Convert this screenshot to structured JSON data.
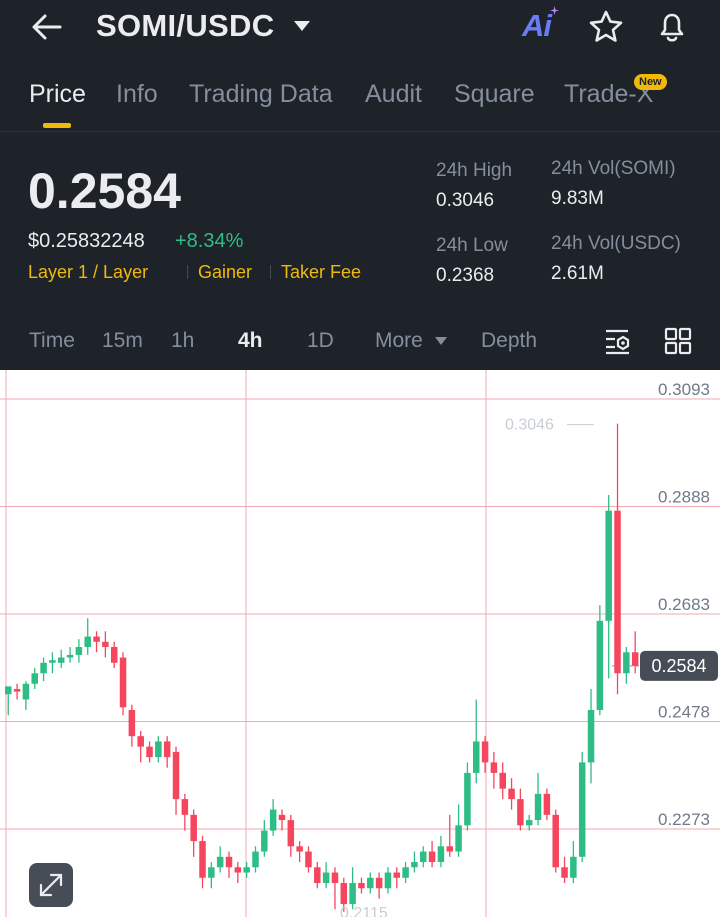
{
  "header": {
    "pair": "SOMI/USDC",
    "ai_label": "Ai",
    "icons": [
      "back-arrow-icon",
      "chevron-down-icon",
      "ai-icon",
      "star-icon",
      "bell-icon"
    ]
  },
  "tabs": [
    {
      "label": "Price",
      "active": true
    },
    {
      "label": "Info"
    },
    {
      "label": "Trading Data"
    },
    {
      "label": "Audit"
    },
    {
      "label": "Square"
    },
    {
      "label": "Trade-X",
      "badge": "New"
    }
  ],
  "ticker": {
    "last_price": "0.2584",
    "usd_price": "$0.25832248",
    "change": "+8.34%",
    "tags": [
      "Layer 1 / Layer",
      "Gainer",
      "Taker Fee"
    ],
    "stats": {
      "high_label": "24h High",
      "high_value": "0.3046",
      "low_label": "24h Low",
      "low_value": "0.2368",
      "vol_base_label": "24h Vol(SOMI)",
      "vol_base_value": "9.83M",
      "vol_quote_label": "24h Vol(USDC)",
      "vol_quote_value": "2.61M"
    }
  },
  "intervals": {
    "items": [
      "Time",
      "15m",
      "1h",
      "4h",
      "1D",
      "More",
      "Depth"
    ],
    "active": "4h"
  },
  "chart_data": {
    "type": "candlestick",
    "y_ticks": [
      "0.3093",
      "0.2888",
      "0.2683",
      "0.2478",
      "0.2273"
    ],
    "ylim": [
      0.2115,
      0.3093
    ],
    "high_marker": "0.3046",
    "low_marker": "0.2115",
    "last_price_label": "0.2584",
    "colors": {
      "up": "#2ebd85",
      "down": "#f6465d",
      "grid": "#f0a9b1"
    },
    "candles": [
      [
        0.253,
        0.2545,
        0.249,
        0.254
      ],
      [
        0.254,
        0.2535,
        0.252,
        0.255
      ],
      [
        0.252,
        0.255,
        0.25,
        0.2555
      ],
      [
        0.255,
        0.257,
        0.254,
        0.258
      ],
      [
        0.257,
        0.259,
        0.2555,
        0.26
      ],
      [
        0.259,
        0.2595,
        0.257,
        0.261
      ],
      [
        0.259,
        0.26,
        0.258,
        0.2615
      ],
      [
        0.26,
        0.2605,
        0.259,
        0.262
      ],
      [
        0.2605,
        0.262,
        0.259,
        0.2635
      ],
      [
        0.262,
        0.264,
        0.2605,
        0.2675
      ],
      [
        0.264,
        0.263,
        0.261,
        0.265
      ],
      [
        0.263,
        0.262,
        0.26,
        0.265
      ],
      [
        0.262,
        0.259,
        0.258,
        0.263
      ],
      [
        0.26,
        0.2505,
        0.249,
        0.261
      ],
      [
        0.25,
        0.245,
        0.243,
        0.251
      ],
      [
        0.245,
        0.243,
        0.24,
        0.246
      ],
      [
        0.243,
        0.241,
        0.24,
        0.244
      ],
      [
        0.241,
        0.244,
        0.24,
        0.245
      ],
      [
        0.244,
        0.241,
        0.239,
        0.245
      ],
      [
        0.242,
        0.233,
        0.23,
        0.243
      ],
      [
        0.233,
        0.23,
        0.227,
        0.234
      ],
      [
        0.23,
        0.225,
        0.222,
        0.231
      ],
      [
        0.225,
        0.218,
        0.216,
        0.226
      ],
      [
        0.218,
        0.22,
        0.216,
        0.221
      ],
      [
        0.22,
        0.222,
        0.219,
        0.224
      ],
      [
        0.222,
        0.22,
        0.218,
        0.223
      ],
      [
        0.22,
        0.219,
        0.217,
        0.221
      ],
      [
        0.219,
        0.22,
        0.218,
        0.221
      ],
      [
        0.22,
        0.223,
        0.219,
        0.224
      ],
      [
        0.223,
        0.227,
        0.222,
        0.229
      ],
      [
        0.227,
        0.231,
        0.226,
        0.233
      ],
      [
        0.23,
        0.229,
        0.227,
        0.231
      ],
      [
        0.229,
        0.224,
        0.222,
        0.23
      ],
      [
        0.224,
        0.223,
        0.221,
        0.225
      ],
      [
        0.223,
        0.22,
        0.219,
        0.224
      ],
      [
        0.22,
        0.217,
        0.216,
        0.221
      ],
      [
        0.217,
        0.219,
        0.216,
        0.221
      ],
      [
        0.219,
        0.217,
        0.212,
        0.22
      ],
      [
        0.217,
        0.213,
        0.2115,
        0.218
      ],
      [
        0.213,
        0.217,
        0.212,
        0.22
      ],
      [
        0.217,
        0.216,
        0.215,
        0.218
      ],
      [
        0.216,
        0.218,
        0.215,
        0.219
      ],
      [
        0.218,
        0.216,
        0.214,
        0.219
      ],
      [
        0.216,
        0.219,
        0.215,
        0.22
      ],
      [
        0.219,
        0.218,
        0.216,
        0.22
      ],
      [
        0.218,
        0.22,
        0.217,
        0.221
      ],
      [
        0.22,
        0.221,
        0.219,
        0.223
      ],
      [
        0.221,
        0.223,
        0.22,
        0.224
      ],
      [
        0.223,
        0.221,
        0.22,
        0.225
      ],
      [
        0.221,
        0.224,
        0.22,
        0.226
      ],
      [
        0.224,
        0.223,
        0.222,
        0.23
      ],
      [
        0.223,
        0.228,
        0.222,
        0.232
      ],
      [
        0.228,
        0.238,
        0.227,
        0.24
      ],
      [
        0.238,
        0.244,
        0.236,
        0.252
      ],
      [
        0.244,
        0.24,
        0.238,
        0.245
      ],
      [
        0.24,
        0.238,
        0.235,
        0.242
      ],
      [
        0.238,
        0.235,
        0.233,
        0.24
      ],
      [
        0.235,
        0.233,
        0.231,
        0.237
      ],
      [
        0.233,
        0.228,
        0.227,
        0.235
      ],
      [
        0.228,
        0.229,
        0.227,
        0.23
      ],
      [
        0.229,
        0.234,
        0.228,
        0.238
      ],
      [
        0.234,
        0.23,
        0.229,
        0.235
      ],
      [
        0.23,
        0.22,
        0.219,
        0.231
      ],
      [
        0.22,
        0.218,
        0.217,
        0.222
      ],
      [
        0.218,
        0.222,
        0.217,
        0.225
      ],
      [
        0.222,
        0.24,
        0.221,
        0.242
      ],
      [
        0.24,
        0.25,
        0.236,
        0.254
      ],
      [
        0.25,
        0.267,
        0.249,
        0.27
      ],
      [
        0.267,
        0.288,
        0.256,
        0.291
      ],
      [
        0.288,
        0.257,
        0.253,
        0.3046
      ],
      [
        0.257,
        0.261,
        0.255,
        0.262
      ],
      [
        0.261,
        0.2584,
        0.257,
        0.265
      ]
    ]
  }
}
